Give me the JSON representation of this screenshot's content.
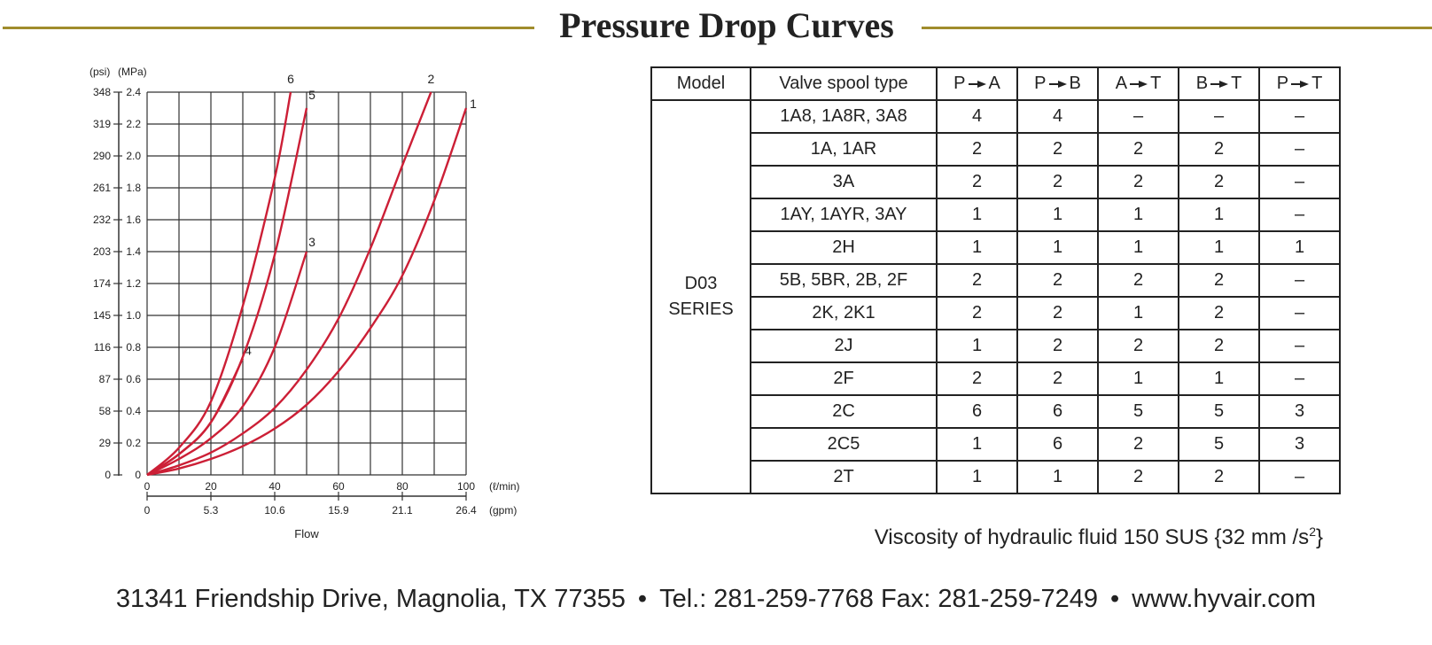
{
  "title": "Pressure Drop Curves",
  "chart_data": {
    "type": "line",
    "xlabel": "Flow",
    "x_unit_primary": "(ℓ/min)",
    "x_unit_secondary": "(gpm)",
    "x_ticks_primary": [
      "0",
      "20",
      "40",
      "60",
      "80",
      "100"
    ],
    "x_ticks_secondary": [
      "0",
      "5.3",
      "10.6",
      "15.9",
      "21.1",
      "26.4"
    ],
    "y_unit_primary": "(MPa)",
    "y_unit_secondary": "(psi)",
    "y_ticks_primary": [
      "0",
      "0.2",
      "0.4",
      "0.6",
      "0.8",
      "1.0",
      "1.2",
      "1.4",
      "1.6",
      "1.8",
      "2.0",
      "2.2",
      "2.4"
    ],
    "y_ticks_secondary": [
      "0",
      "29",
      "58",
      "87",
      "116",
      "145",
      "174",
      "203",
      "232",
      "261",
      "290",
      "319",
      "348"
    ],
    "xlim": [
      0,
      100
    ],
    "ylim": [
      0,
      2.4
    ],
    "grid": true,
    "line_color": "#cc1f36",
    "series": [
      {
        "name": "1",
        "x": [
          0,
          10,
          20,
          30,
          40,
          50,
          60,
          70,
          80,
          90,
          100
        ],
        "y": [
          0,
          0.04,
          0.1,
          0.18,
          0.29,
          0.44,
          0.65,
          0.92,
          1.25,
          1.72,
          2.3
        ]
      },
      {
        "name": "2",
        "x": [
          0,
          10,
          20,
          30,
          40,
          50,
          60,
          70,
          80,
          89
        ],
        "y": [
          0,
          0.06,
          0.14,
          0.26,
          0.42,
          0.66,
          0.98,
          1.42,
          1.94,
          2.4
        ]
      },
      {
        "name": "3",
        "x": [
          0,
          10,
          20,
          30,
          40,
          50
        ],
        "y": [
          0,
          0.1,
          0.23,
          0.43,
          0.8,
          1.4
        ]
      },
      {
        "name": "4",
        "x": [
          0,
          10,
          20,
          30
        ],
        "y": [
          0,
          0.13,
          0.33,
          0.73
        ]
      },
      {
        "name": "5",
        "x": [
          0,
          10,
          20,
          30,
          40,
          50
        ],
        "y": [
          0,
          0.13,
          0.33,
          0.74,
          1.38,
          2.3
        ]
      },
      {
        "name": "6",
        "x": [
          0,
          10,
          20,
          30,
          40,
          45
        ],
        "y": [
          0,
          0.17,
          0.46,
          1.06,
          1.86,
          2.4
        ]
      }
    ]
  },
  "table": {
    "headers": [
      "Model",
      "Valve spool type",
      "P",
      "A",
      "P",
      "B",
      "A",
      "T",
      "B",
      "T",
      "P",
      "T"
    ],
    "model_line1": "D03",
    "model_line2": "SERIES",
    "rows": [
      {
        "spool": "1A8, 1A8R, 3A8",
        "pa": "4",
        "pb": "4",
        "at": "–",
        "bt": "–",
        "pt": "–"
      },
      {
        "spool": "1A, 1AR",
        "pa": "2",
        "pb": "2",
        "at": "2",
        "bt": "2",
        "pt": "–"
      },
      {
        "spool": "3A",
        "pa": "2",
        "pb": "2",
        "at": "2",
        "bt": "2",
        "pt": "–"
      },
      {
        "spool": "1AY, 1AYR, 3AY",
        "pa": "1",
        "pb": "1",
        "at": "1",
        "bt": "1",
        "pt": "–"
      },
      {
        "spool": "2H",
        "pa": "1",
        "pb": "1",
        "at": "1",
        "bt": "1",
        "pt": "1"
      },
      {
        "spool": "5B, 5BR, 2B, 2F",
        "pa": "2",
        "pb": "2",
        "at": "2",
        "bt": "2",
        "pt": "–"
      },
      {
        "spool": "2K, 2K1",
        "pa": "2",
        "pb": "2",
        "at": "1",
        "bt": "2",
        "pt": "–"
      },
      {
        "spool": "2J",
        "pa": "1",
        "pb": "2",
        "at": "2",
        "bt": "2",
        "pt": "–"
      },
      {
        "spool": "2F",
        "pa": "2",
        "pb": "2",
        "at": "1",
        "bt": "1",
        "pt": "–"
      },
      {
        "spool": "2C",
        "pa": "6",
        "pb": "6",
        "at": "5",
        "bt": "5",
        "pt": "3"
      },
      {
        "spool": "2C5",
        "pa": "1",
        "pb": "6",
        "at": "2",
        "bt": "5",
        "pt": "3"
      },
      {
        "spool": "2T",
        "pa": "1",
        "pb": "1",
        "at": "2",
        "bt": "2",
        "pt": "–"
      }
    ]
  },
  "viscosity": {
    "text": "Viscosity of hydraulic fluid 150 SUS {32 mm /s",
    "sup": "2",
    "close": "}"
  },
  "footer": {
    "address": "31341 Friendship Drive, Magnolia, TX 77355",
    "sep": "•",
    "phone": "Tel.: 281-259-7768 Fax: 281-259-7249",
    "website": "www.hyvair.com"
  }
}
